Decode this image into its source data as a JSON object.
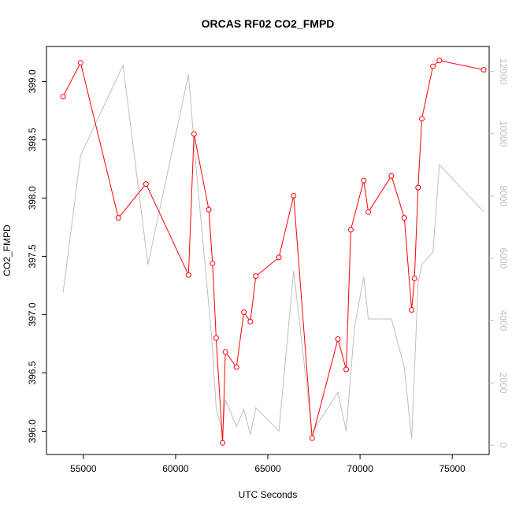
{
  "chart_data": {
    "type": "line",
    "title": "ORCAS RF02 CO2_FMPD",
    "xlabel": "UTC Seconds",
    "ylabel": "CO2_FMPD",
    "xlim": [
      53000,
      77000
    ],
    "ylim": [
      395.8,
      399.3
    ],
    "y2lim": [
      -300,
      12800
    ],
    "x_ticks": [
      55000,
      60000,
      65000,
      70000,
      75000
    ],
    "y_ticks": [
      396.0,
      396.5,
      397.0,
      397.5,
      398.0,
      398.5,
      399.0
    ],
    "y_tick_labels": [
      "396.0",
      "396.5",
      "397.0",
      "397.5",
      "398.0",
      "398.5",
      "399.0"
    ],
    "y2_ticks": [
      0,
      2000,
      4000,
      6000,
      8000,
      10000,
      12000
    ],
    "y2_tick_labels": [
      "0",
      "2000",
      "4000",
      "6000",
      "8000",
      "10000",
      "12000"
    ],
    "series": [
      {
        "color": "#ff0000",
        "axis": "left",
        "style": "line+points",
        "x": [
          53900,
          54850,
          56900,
          58400,
          60700,
          61000,
          61800,
          62000,
          62200,
          62550,
          62700,
          63300,
          63700,
          64050,
          64350,
          65600,
          66400,
          67400,
          68800,
          69250,
          69500,
          70200,
          70450,
          71700,
          72400,
          72800,
          72950,
          73150,
          73350,
          73950,
          74300,
          76700
        ],
        "values": [
          398.87,
          399.16,
          397.83,
          398.12,
          397.34,
          398.55,
          397.9,
          397.44,
          396.8,
          395.9,
          396.68,
          396.55,
          397.02,
          396.94,
          397.33,
          397.49,
          398.02,
          395.94,
          396.79,
          396.53,
          397.73,
          398.15,
          397.88,
          398.19,
          397.83,
          397.04,
          397.31,
          398.09,
          398.68,
          399.13,
          399.18,
          399.1
        ]
      },
      {
        "color": "#bebebe",
        "axis": "right",
        "style": "line",
        "x": [
          53900,
          54850,
          57150,
          58500,
          60700,
          61100,
          61950,
          62200,
          62550,
          62700,
          63300,
          63700,
          64050,
          64350,
          65600,
          66400,
          67400,
          68800,
          69250,
          69700,
          70200,
          70450,
          71700,
          72400,
          72800,
          73150,
          73350,
          73950,
          74300,
          76700
        ],
        "values": [
          4900,
          9300,
          12200,
          5800,
          11900,
          9000,
          3500,
          1200,
          400,
          1450,
          600,
          1150,
          350,
          1200,
          450,
          5600,
          400,
          1700,
          450,
          3800,
          5400,
          4050,
          4050,
          2500,
          200,
          5200,
          5800,
          6200,
          9000,
          7500
        ]
      }
    ]
  }
}
